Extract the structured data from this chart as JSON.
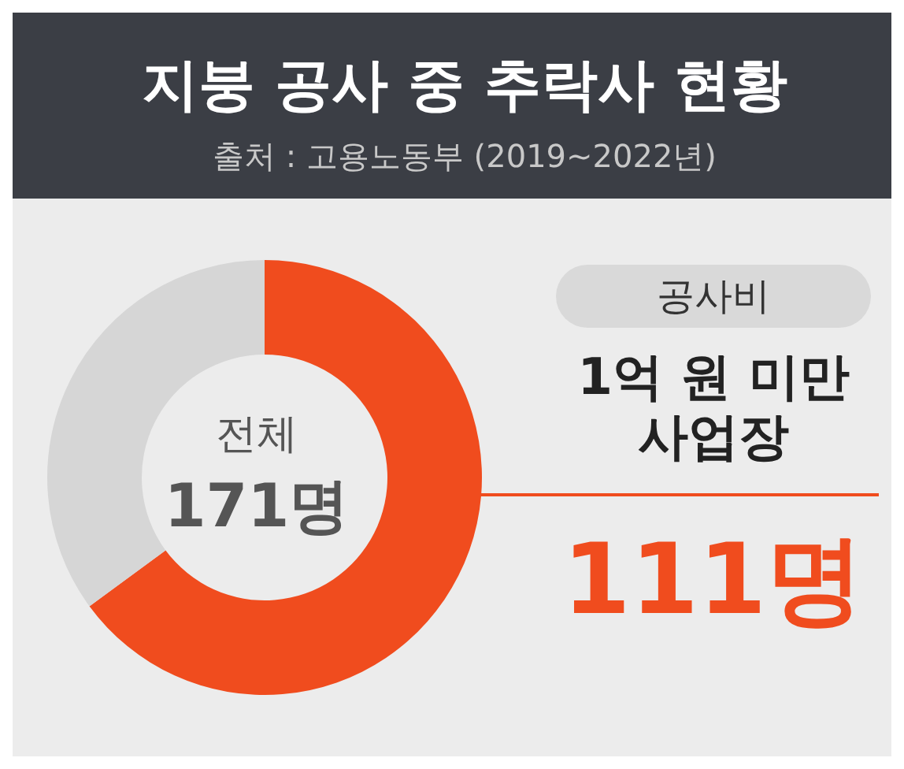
{
  "chart_data": {
    "type": "donut",
    "title": "지붕 공사 중 추락사 현황",
    "subtitle": "출처 : 고용노동부 (2019~2022년)",
    "categories": [
      "공사비\n1억 원 미만\n사업장",
      null
    ],
    "values": [
      111,
      60
    ],
    "colors": [
      "#f04c1e",
      "#d6d6d6"
    ],
    "value_labels": [
      "111명",
      null
    ],
    "annotations": [
      "전체",
      "171명"
    ]
  }
}
